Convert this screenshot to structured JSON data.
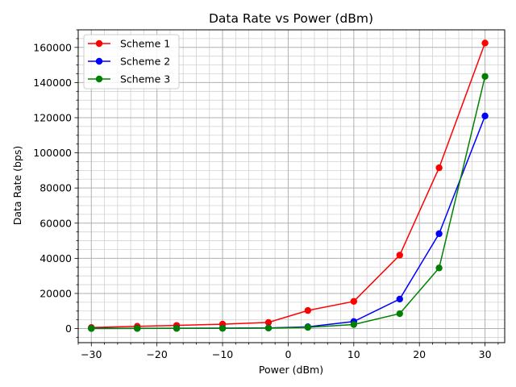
{
  "chart_data": {
    "type": "line",
    "title": "Data Rate vs Power (dBm)",
    "xlabel": "Power (dBm)",
    "ylabel": "Data Rate (bps)",
    "xlim": [
      -32,
      33
    ],
    "ylim": [
      -8000,
      170000
    ],
    "xticks": [
      -30,
      -20,
      -10,
      0,
      10,
      20,
      30
    ],
    "yticks": [
      0,
      20000,
      40000,
      60000,
      80000,
      100000,
      120000,
      140000,
      160000
    ],
    "x_minor_step": 2,
    "y_minor_step": 5000,
    "grid": true,
    "legend_position": "top-left",
    "x": [
      -30,
      -23,
      -17,
      -10,
      -3,
      3,
      10,
      17,
      23,
      30
    ],
    "series": [
      {
        "name": "Scheme 1",
        "color": "#ff0000",
        "values": [
          600,
          1300,
          1800,
          2500,
          3500,
          10300,
          15500,
          41800,
          91500,
          162500
        ]
      },
      {
        "name": "Scheme 2",
        "color": "#0000ff",
        "values": [
          100,
          150,
          200,
          250,
          400,
          1000,
          4000,
          16800,
          54000,
          121000
        ]
      },
      {
        "name": "Scheme 3",
        "color": "#008000",
        "values": [
          50,
          80,
          100,
          150,
          300,
          700,
          2300,
          8500,
          34500,
          143500
        ]
      }
    ]
  }
}
